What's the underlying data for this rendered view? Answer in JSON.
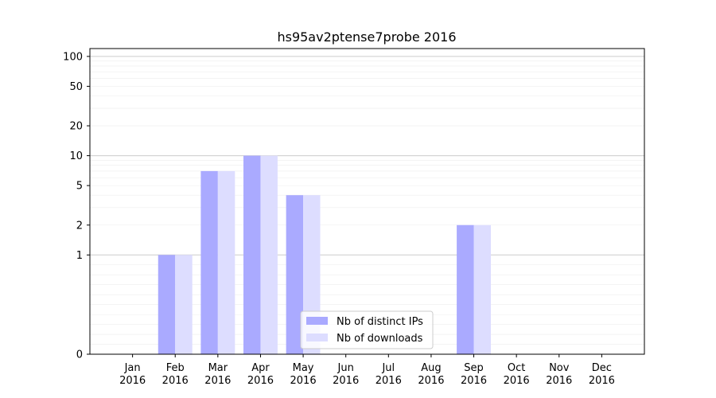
{
  "chart_data": {
    "type": "bar",
    "title": "hs95av2ptense7probe 2016",
    "xlabel": "",
    "ylabel": "",
    "categories": [
      [
        "Jan",
        "2016"
      ],
      [
        "Feb",
        "2016"
      ],
      [
        "Mar",
        "2016"
      ],
      [
        "Apr",
        "2016"
      ],
      [
        "May",
        "2016"
      ],
      [
        "Jun",
        "2016"
      ],
      [
        "Jul",
        "2016"
      ],
      [
        "Aug",
        "2016"
      ],
      [
        "Sep",
        "2016"
      ],
      [
        "Oct",
        "2016"
      ],
      [
        "Nov",
        "2016"
      ],
      [
        "Dec",
        "2016"
      ]
    ],
    "series": [
      {
        "name": "Nb of distinct IPs",
        "color": "#aaaaff",
        "values": [
          0,
          1,
          7,
          10,
          4,
          0,
          0,
          0,
          2,
          0,
          0,
          0
        ]
      },
      {
        "name": "Nb of downloads",
        "color": "#ddddff",
        "values": [
          0,
          1,
          7,
          10,
          4,
          0,
          0,
          0,
          2,
          0,
          0,
          0
        ]
      }
    ],
    "y_scale": "symlog",
    "ylim": [
      0,
      120
    ],
    "y_ticks": [
      {
        "value": 0,
        "label": "0"
      },
      {
        "value": 1,
        "label": "1"
      },
      {
        "value": 2,
        "label": "2"
      },
      {
        "value": 5,
        "label": "5"
      },
      {
        "value": 10,
        "label": "10"
      },
      {
        "value": 20,
        "label": "20"
      },
      {
        "value": 50,
        "label": "50"
      },
      {
        "value": 100,
        "label": "100"
      }
    ],
    "grid": true,
    "legend_position": "bottom-center"
  }
}
